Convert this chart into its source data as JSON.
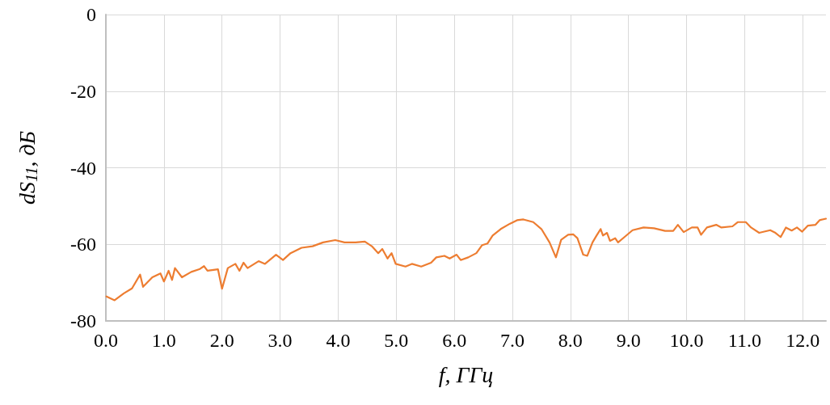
{
  "chart_data": {
    "type": "line",
    "xlabel": "f, ГГц",
    "ylabel": "dS$_{11}$, дБ",
    "xlim": [
      0,
      12.4
    ],
    "ylim": [
      -80,
      0
    ],
    "xticks": [
      {
        "value": 0,
        "label": "0.0"
      },
      {
        "value": 1,
        "label": "1.0"
      },
      {
        "value": 2,
        "label": "2.0"
      },
      {
        "value": 3,
        "label": "3.0"
      },
      {
        "value": 4,
        "label": "4.0"
      },
      {
        "value": 5,
        "label": "5.0"
      },
      {
        "value": 6,
        "label": "6.0"
      },
      {
        "value": 7,
        "label": "7.0"
      },
      {
        "value": 8,
        "label": "8.0"
      },
      {
        "value": 9,
        "label": "9.0"
      },
      {
        "value": 10,
        "label": "10.0"
      },
      {
        "value": 11,
        "label": "11.0"
      },
      {
        "value": 12,
        "label": "12.0"
      }
    ],
    "yticks": [
      -80,
      -60,
      -40,
      -20,
      0
    ],
    "grid": true,
    "marker": "none",
    "line_style": "solid",
    "series": [
      {
        "color": "#ed7d31",
        "x": [
          0.01,
          0.15,
          0.31,
          0.45,
          0.59,
          0.64,
          0.8,
          0.94,
          1.0,
          1.08,
          1.14,
          1.19,
          1.31,
          1.47,
          1.61,
          1.69,
          1.75,
          1.93,
          2.0,
          2.1,
          2.23,
          2.3,
          2.37,
          2.44,
          2.63,
          2.74,
          2.93,
          3.05,
          3.18,
          3.37,
          3.56,
          3.74,
          3.95,
          4.11,
          4.3,
          4.46,
          4.58,
          4.69,
          4.76,
          4.85,
          4.92,
          4.99,
          5.16,
          5.27,
          5.43,
          5.6,
          5.69,
          5.83,
          5.92,
          6.04,
          6.11,
          6.24,
          6.38,
          6.48,
          6.57,
          6.66,
          6.8,
          6.96,
          7.08,
          7.19,
          7.36,
          7.5,
          7.64,
          7.75,
          7.84,
          7.96,
          8.05,
          8.12,
          8.22,
          8.29,
          8.38,
          8.45,
          8.52,
          8.56,
          8.63,
          8.68,
          8.77,
          8.82,
          8.93,
          9.07,
          9.26,
          9.44,
          9.63,
          9.77,
          9.85,
          9.95,
          10.09,
          10.19,
          10.25,
          10.35,
          10.51,
          10.6,
          10.79,
          10.88,
          11.02,
          11.11,
          11.25,
          11.44,
          11.53,
          11.62,
          11.71,
          11.81,
          11.9,
          11.99,
          12.09,
          12.22,
          12.29,
          12.4
        ],
        "values": [
          -73.6,
          -74.6,
          -72.8,
          -71.5,
          -67.9,
          -71.1,
          -68.6,
          -67.6,
          -69.7,
          -66.9,
          -69.3,
          -66.2,
          -68.6,
          -67.2,
          -66.5,
          -65.7,
          -66.9,
          -66.5,
          -71.6,
          -66.2,
          -65.1,
          -66.9,
          -64.8,
          -66.2,
          -64.4,
          -65.1,
          -62.7,
          -64.1,
          -62.3,
          -60.9,
          -60.5,
          -59.5,
          -58.9,
          -59.5,
          -59.5,
          -59.3,
          -60.5,
          -62.3,
          -61.2,
          -63.7,
          -62.3,
          -65.1,
          -65.8,
          -65.1,
          -65.8,
          -64.8,
          -63.4,
          -63,
          -63.7,
          -62.7,
          -64.1,
          -63.4,
          -62.3,
          -60.2,
          -59.8,
          -57.7,
          -56,
          -54.6,
          -53.7,
          -53.5,
          -54.2,
          -56,
          -59.5,
          -63.4,
          -58.8,
          -57.5,
          -57.4,
          -58.4,
          -62.7,
          -63,
          -59.5,
          -57.7,
          -56,
          -57.7,
          -57,
          -59.1,
          -58.4,
          -59.5,
          -58.1,
          -56.3,
          -55.6,
          -55.8,
          -56.5,
          -56.5,
          -54.9,
          -56.8,
          -55.6,
          -55.6,
          -57.5,
          -55.6,
          -54.9,
          -55.6,
          -55.3,
          -54.2,
          -54.2,
          -55.6,
          -57,
          -56.3,
          -57,
          -58.1,
          -55.6,
          -56.4,
          -55.6,
          -56.7,
          -55.1,
          -54.9,
          -53.7,
          -53.3
        ]
      }
    ]
  }
}
